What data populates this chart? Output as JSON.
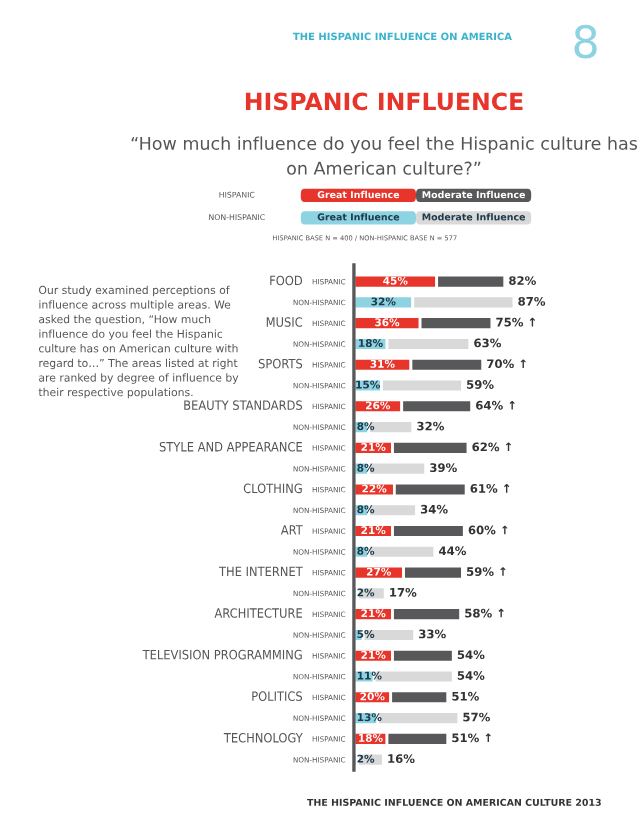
{
  "chart_data": {
    "type": "bar",
    "orientation": "horizontal",
    "stacked": true,
    "title": "HISPANIC INFLUENCE",
    "subtitle": "“How much influence do you feel the Hispanic culture has on American culture?”",
    "categories": [
      "HISPANIC",
      "NON-HISPANIC",
      "HISPANIC",
      "NON-HISPANIC",
      "HISPANIC",
      "NON-HISPANIC",
      "HISPANIC",
      "NON-HISPANIC",
      "HISPANIC",
      "NON-HISPANIC",
      "HISPANIC",
      "NON-HISPANIC",
      "HISPANIC",
      "NON-HISPANIC",
      "HISPANIC",
      "NON-HISPANIC",
      "HISPANIC",
      "NON-HISPANIC",
      "HISPANIC",
      "NON-HISPANIC",
      "HISPANIC",
      "NON-HISPANIC",
      "HISPANIC",
      "NON-HISPANIC"
    ],
    "series": [
      {
        "name": "Great Influence",
        "colors": [
          "#e8352b",
          "#8dd3e2",
          "#e8352b",
          "#8dd3e2",
          "#e8352b",
          "#8dd3e2",
          "#e8352b",
          "#8dd3e2",
          "#e8352b",
          "#8dd3e2",
          "#e8352b",
          "#8dd3e2",
          "#e8352b",
          "#8dd3e2",
          "#e8352b",
          "#8dd3e2",
          "#e8352b",
          "#8dd3e2",
          "#e8352b",
          "#8dd3e2",
          "#e8352b",
          "#8dd3e2",
          "#e8352b",
          "#8dd3e2"
        ],
        "values": [
          45,
          32,
          36,
          18,
          31,
          15,
          26,
          8,
          21,
          8,
          22,
          8,
          21,
          8,
          27,
          2,
          21,
          5,
          21,
          11,
          20,
          13,
          18,
          2
        ],
        "value_labels": [
          "45%",
          "32%",
          "36%",
          "18%",
          "31%",
          "15%",
          "26%",
          "8%",
          "21%",
          "8%",
          "22%",
          "8%",
          "21%",
          "8%",
          "27%",
          "2%",
          "21%",
          "5%",
          "21%",
          "11%",
          "20%",
          "13%",
          "18%",
          "2%"
        ]
      },
      {
        "name": "Moderate Influence",
        "colors": [
          "#58585a",
          "#d9d9d9",
          "#58585a",
          "#d9d9d9",
          "#58585a",
          "#d9d9d9",
          "#58585a",
          "#d9d9d9",
          "#58585a",
          "#d9d9d9",
          "#58585a",
          "#d9d9d9",
          "#58585a",
          "#d9d9d9",
          "#58585a",
          "#d9d9d9",
          "#58585a",
          "#d9d9d9",
          "#58585a",
          "#d9d9d9",
          "#58585a",
          "#d9d9d9",
          "#58585a",
          "#d9d9d9"
        ],
        "values": [
          37,
          55,
          39,
          45,
          39,
          44,
          38,
          24,
          41,
          31,
          39,
          26,
          39,
          36,
          32,
          15,
          37,
          28,
          33,
          43,
          31,
          44,
          33,
          14
        ]
      }
    ],
    "totals": [
      "82%",
      "87%",
      "75% ↑",
      "63%",
      "70% ↑",
      "59%",
      "64% ↑",
      "32%",
      "62% ↑",
      "39%",
      "61% ↑",
      "34%",
      "60% ↑",
      "44%",
      "59% ↑",
      "17%",
      "58% ↑",
      "33%",
      "54%",
      "54%",
      "51%",
      "57%",
      "51% ↑",
      "16%"
    ],
    "tick_labels": "y",
    "legend": "top",
    "annotations": [
      "FOOD",
      "MUSIC",
      "SPORTS",
      "BEAUTY STANDARDS",
      "STYLE AND APPEARANCE",
      "CLOTHING",
      "ART",
      "THE INTERNET",
      "ARCHITECTURE",
      "TELEVISION PROGRAMMING",
      "POLITICS",
      "TECHNOLOGY",
      "THE HISPANIC INFLUENCE ON AMERICA",
      "8",
      "HISPANIC BASE N = 400 / NON-HISPANIC BASE N = 577",
      "Our study examined perceptions of influence across multiple areas. We asked the question, “How much influence do you feel the Hispanic culture has on American culture with regard to…” The areas listed at right are ranked by degree of influence by their respective populations.",
      "THE HISPANIC INFLUENCE ON AMERICAN CULTURE 2013"
    ]
  }
}
